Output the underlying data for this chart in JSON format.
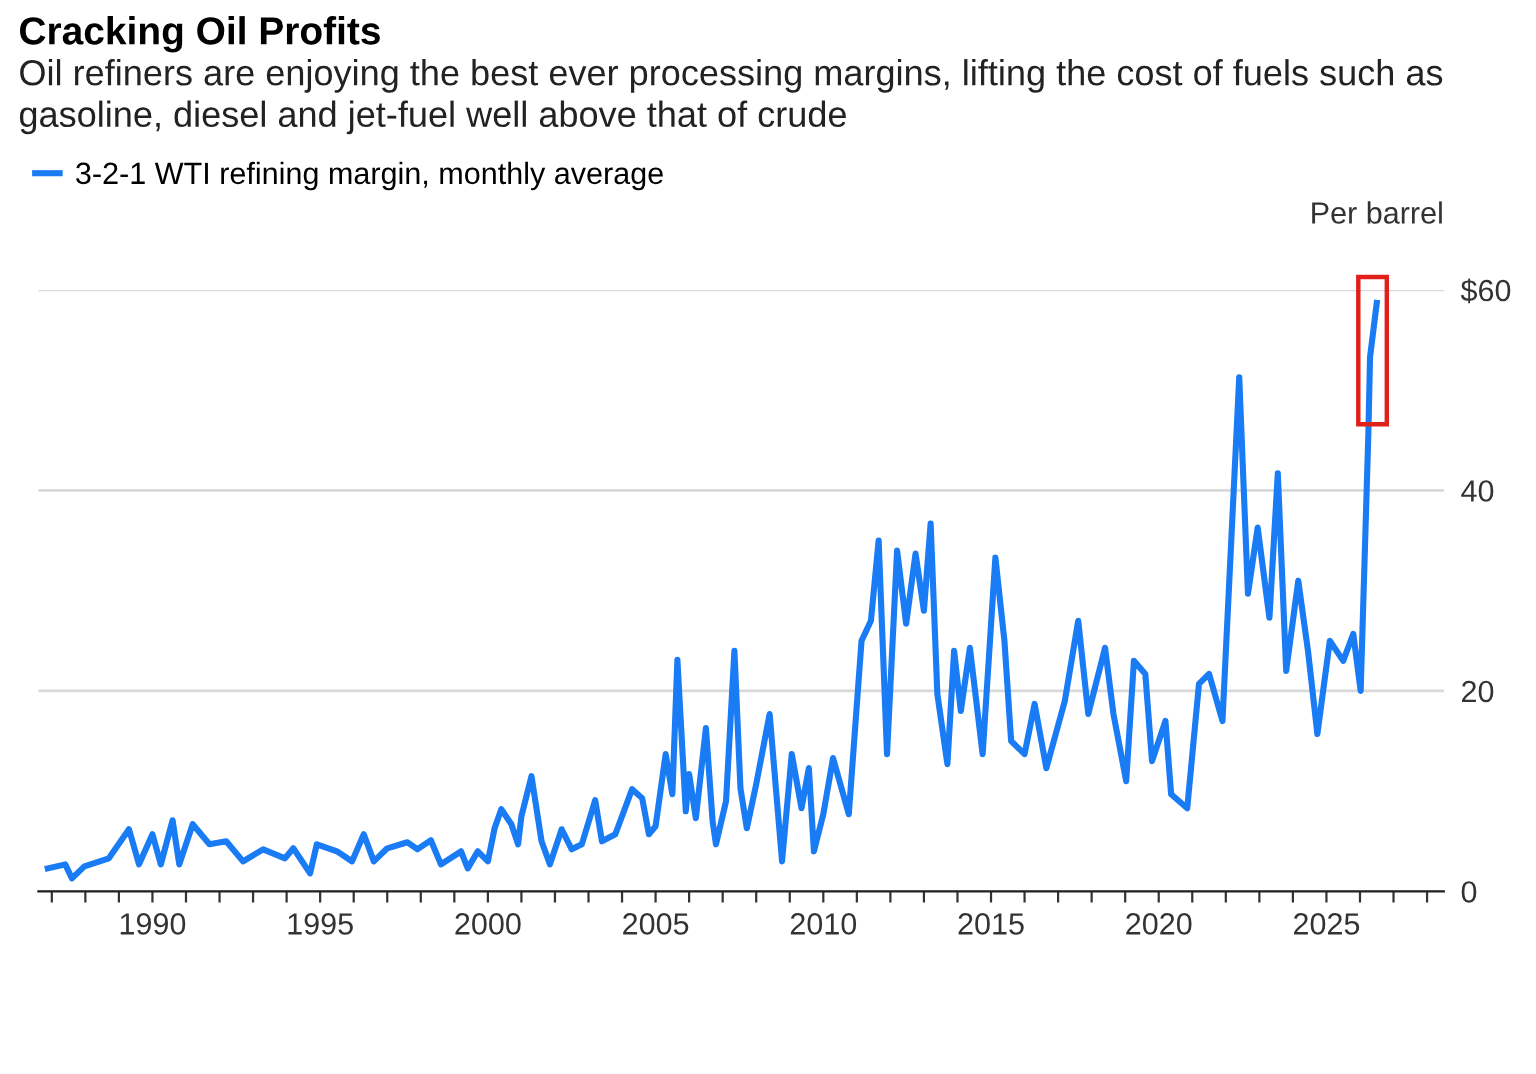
{
  "chart_data": {
    "type": "line",
    "title": "Cracking Oil Profits",
    "subtitle": "Oil refiners are enjoying the best ever processing margins, lifting the cost of fuels such as gasoline, diesel and jet-fuel well above that of crude",
    "ylabel": "Per barrel",
    "series": [
      {
        "name": "3-2-1 WTI refining margin, monthly average",
        "color": "#1a7cf5",
        "x": [
          1986.88,
          1987.4,
          1987.6,
          1987.97,
          1988.7,
          1989.3,
          1989.6,
          1990.0,
          1990.25,
          1990.6,
          1990.8,
          1991.2,
          1991.7,
          1992.2,
          1992.7,
          1993.3,
          1993.95,
          1994.2,
          1994.7,
          1994.9,
          1995.5,
          1995.95,
          1996.3,
          1996.6,
          1997.0,
          1997.6,
          1997.9,
          1998.3,
          1998.6,
          1999.2,
          1999.4,
          1999.7,
          2000.0,
          2000.2,
          2000.4,
          2000.7,
          2000.9,
          2001.0,
          2001.3,
          2001.6,
          2001.85,
          2002.2,
          2002.5,
          2002.8,
          2003.2,
          2003.4,
          2003.8,
          2004.3,
          2004.6,
          2004.8,
          2005.0,
          2005.3,
          2005.5,
          2005.65,
          2005.9,
          2006.0,
          2006.2,
          2006.5,
          2006.7,
          2006.8,
          2007.1,
          2007.35,
          2007.53,
          2007.72,
          2008.0,
          2008.4,
          2008.77,
          2009.06,
          2009.35,
          2009.57,
          2009.72,
          2010.0,
          2010.29,
          2010.76,
          2011.14,
          2011.42,
          2011.65,
          2011.9,
          2012.2,
          2012.47,
          2012.75,
          2013.0,
          2013.2,
          2013.4,
          2013.7,
          2013.9,
          2014.1,
          2014.37,
          2014.75,
          2015.13,
          2015.4,
          2015.6,
          2016.0,
          2016.3,
          2016.65,
          2017.2,
          2017.6,
          2017.9,
          2018.4,
          2018.65,
          2019.03,
          2019.26,
          2019.6,
          2019.8,
          2020.2,
          2020.37,
          2020.85,
          2021.2,
          2021.5,
          2021.9,
          2022.4,
          2022.66,
          2022.95,
          2023.3,
          2023.55,
          2023.8,
          2024.16,
          2024.45,
          2024.73,
          2025.1,
          2025.5,
          2025.8,
          2026.02,
          2026.25,
          2026.3,
          2026.5
        ],
        "values": [
          2.3,
          2.7,
          1.3,
          2.5,
          3.3,
          6.2,
          2.7,
          5.7,
          2.7,
          7.1,
          2.7,
          6.7,
          4.7,
          5,
          3,
          4.2,
          3.3,
          4.3,
          1.8,
          4.7,
          4,
          3,
          5.7,
          3,
          4.3,
          4.9,
          4.2,
          5.1,
          2.7,
          4,
          2.3,
          4,
          3,
          6.3,
          8.2,
          6.7,
          4.7,
          7.5,
          11.5,
          5,
          2.7,
          6.2,
          4.2,
          4.7,
          9.1,
          5,
          5.7,
          10.2,
          9.3,
          5.7,
          6.5,
          13.7,
          9.7,
          23.1,
          8,
          11.7,
          7.3,
          16.3,
          7,
          4.7,
          9,
          24,
          10.3,
          6.3,
          10.7,
          17.7,
          3,
          13.7,
          8.3,
          12.3,
          4,
          7.7,
          13.3,
          7.7,
          25,
          27,
          35,
          13.7,
          34,
          26.7,
          33.7,
          28,
          36.7,
          19.7,
          12.7,
          24,
          18,
          24.3,
          13.7,
          33.3,
          25,
          15,
          13.7,
          18.7,
          12.3,
          19,
          27,
          17.7,
          24.3,
          17.7,
          11,
          23,
          21.7,
          13,
          17,
          9.7,
          8.3,
          20.7,
          21.7,
          17,
          51.3,
          29.7,
          36.3,
          27.3,
          41.7,
          22,
          31,
          24,
          15.7,
          25,
          23,
          25.7,
          20,
          45.7,
          53.3,
          58.7
        ]
      }
    ],
    "xlim": [
      1986.6,
      2028.5
    ],
    "xticks": [
      {
        "value": 1987,
        "label": null
      },
      {
        "value": 1988,
        "label": null
      },
      {
        "value": 1989,
        "label": null
      },
      1990,
      {
        "value": 1991,
        "label": null
      },
      {
        "value": 1992,
        "label": null
      },
      {
        "value": 1993,
        "label": null
      },
      {
        "value": 1994,
        "label": null
      },
      1995,
      {
        "value": 1996,
        "label": null
      },
      {
        "value": 1997,
        "label": null
      },
      {
        "value": 1998,
        "label": null
      },
      {
        "value": 1999,
        "label": null
      },
      2000,
      {
        "value": 2001,
        "label": null
      },
      {
        "value": 2002,
        "label": null
      },
      {
        "value": 2003,
        "label": null
      },
      {
        "value": 2004,
        "label": null
      },
      2005,
      {
        "value": 2006,
        "label": null
      },
      {
        "value": 2007,
        "label": null
      },
      {
        "value": 2008,
        "label": null
      },
      {
        "value": 2009,
        "label": null
      },
      2010,
      {
        "value": 2011,
        "label": null
      },
      {
        "value": 2012,
        "label": null
      },
      {
        "value": 2013,
        "label": null
      },
      {
        "value": 2014,
        "label": null
      },
      2015,
      {
        "value": 2016,
        "label": null
      },
      {
        "value": 2017,
        "label": null
      },
      {
        "value": 2018,
        "label": null
      },
      {
        "value": 2019,
        "label": null
      },
      2020,
      {
        "value": 2021,
        "label": null
      },
      {
        "value": 2022,
        "label": null
      },
      {
        "value": 2023,
        "label": null
      },
      {
        "value": 2024,
        "label": null
      },
      2025,
      {
        "value": 2026,
        "label": null
      },
      {
        "value": 2027,
        "label": null
      },
      {
        "value": 2028,
        "label": null
      }
    ],
    "ylim": [
      0,
      60
    ],
    "yticks": [
      0,
      20,
      40,
      {
        "value": 60,
        "label": "$60"
      }
    ],
    "grid": "y",
    "legend": "top left",
    "line_style": "solid",
    "marker": "none"
  }
}
